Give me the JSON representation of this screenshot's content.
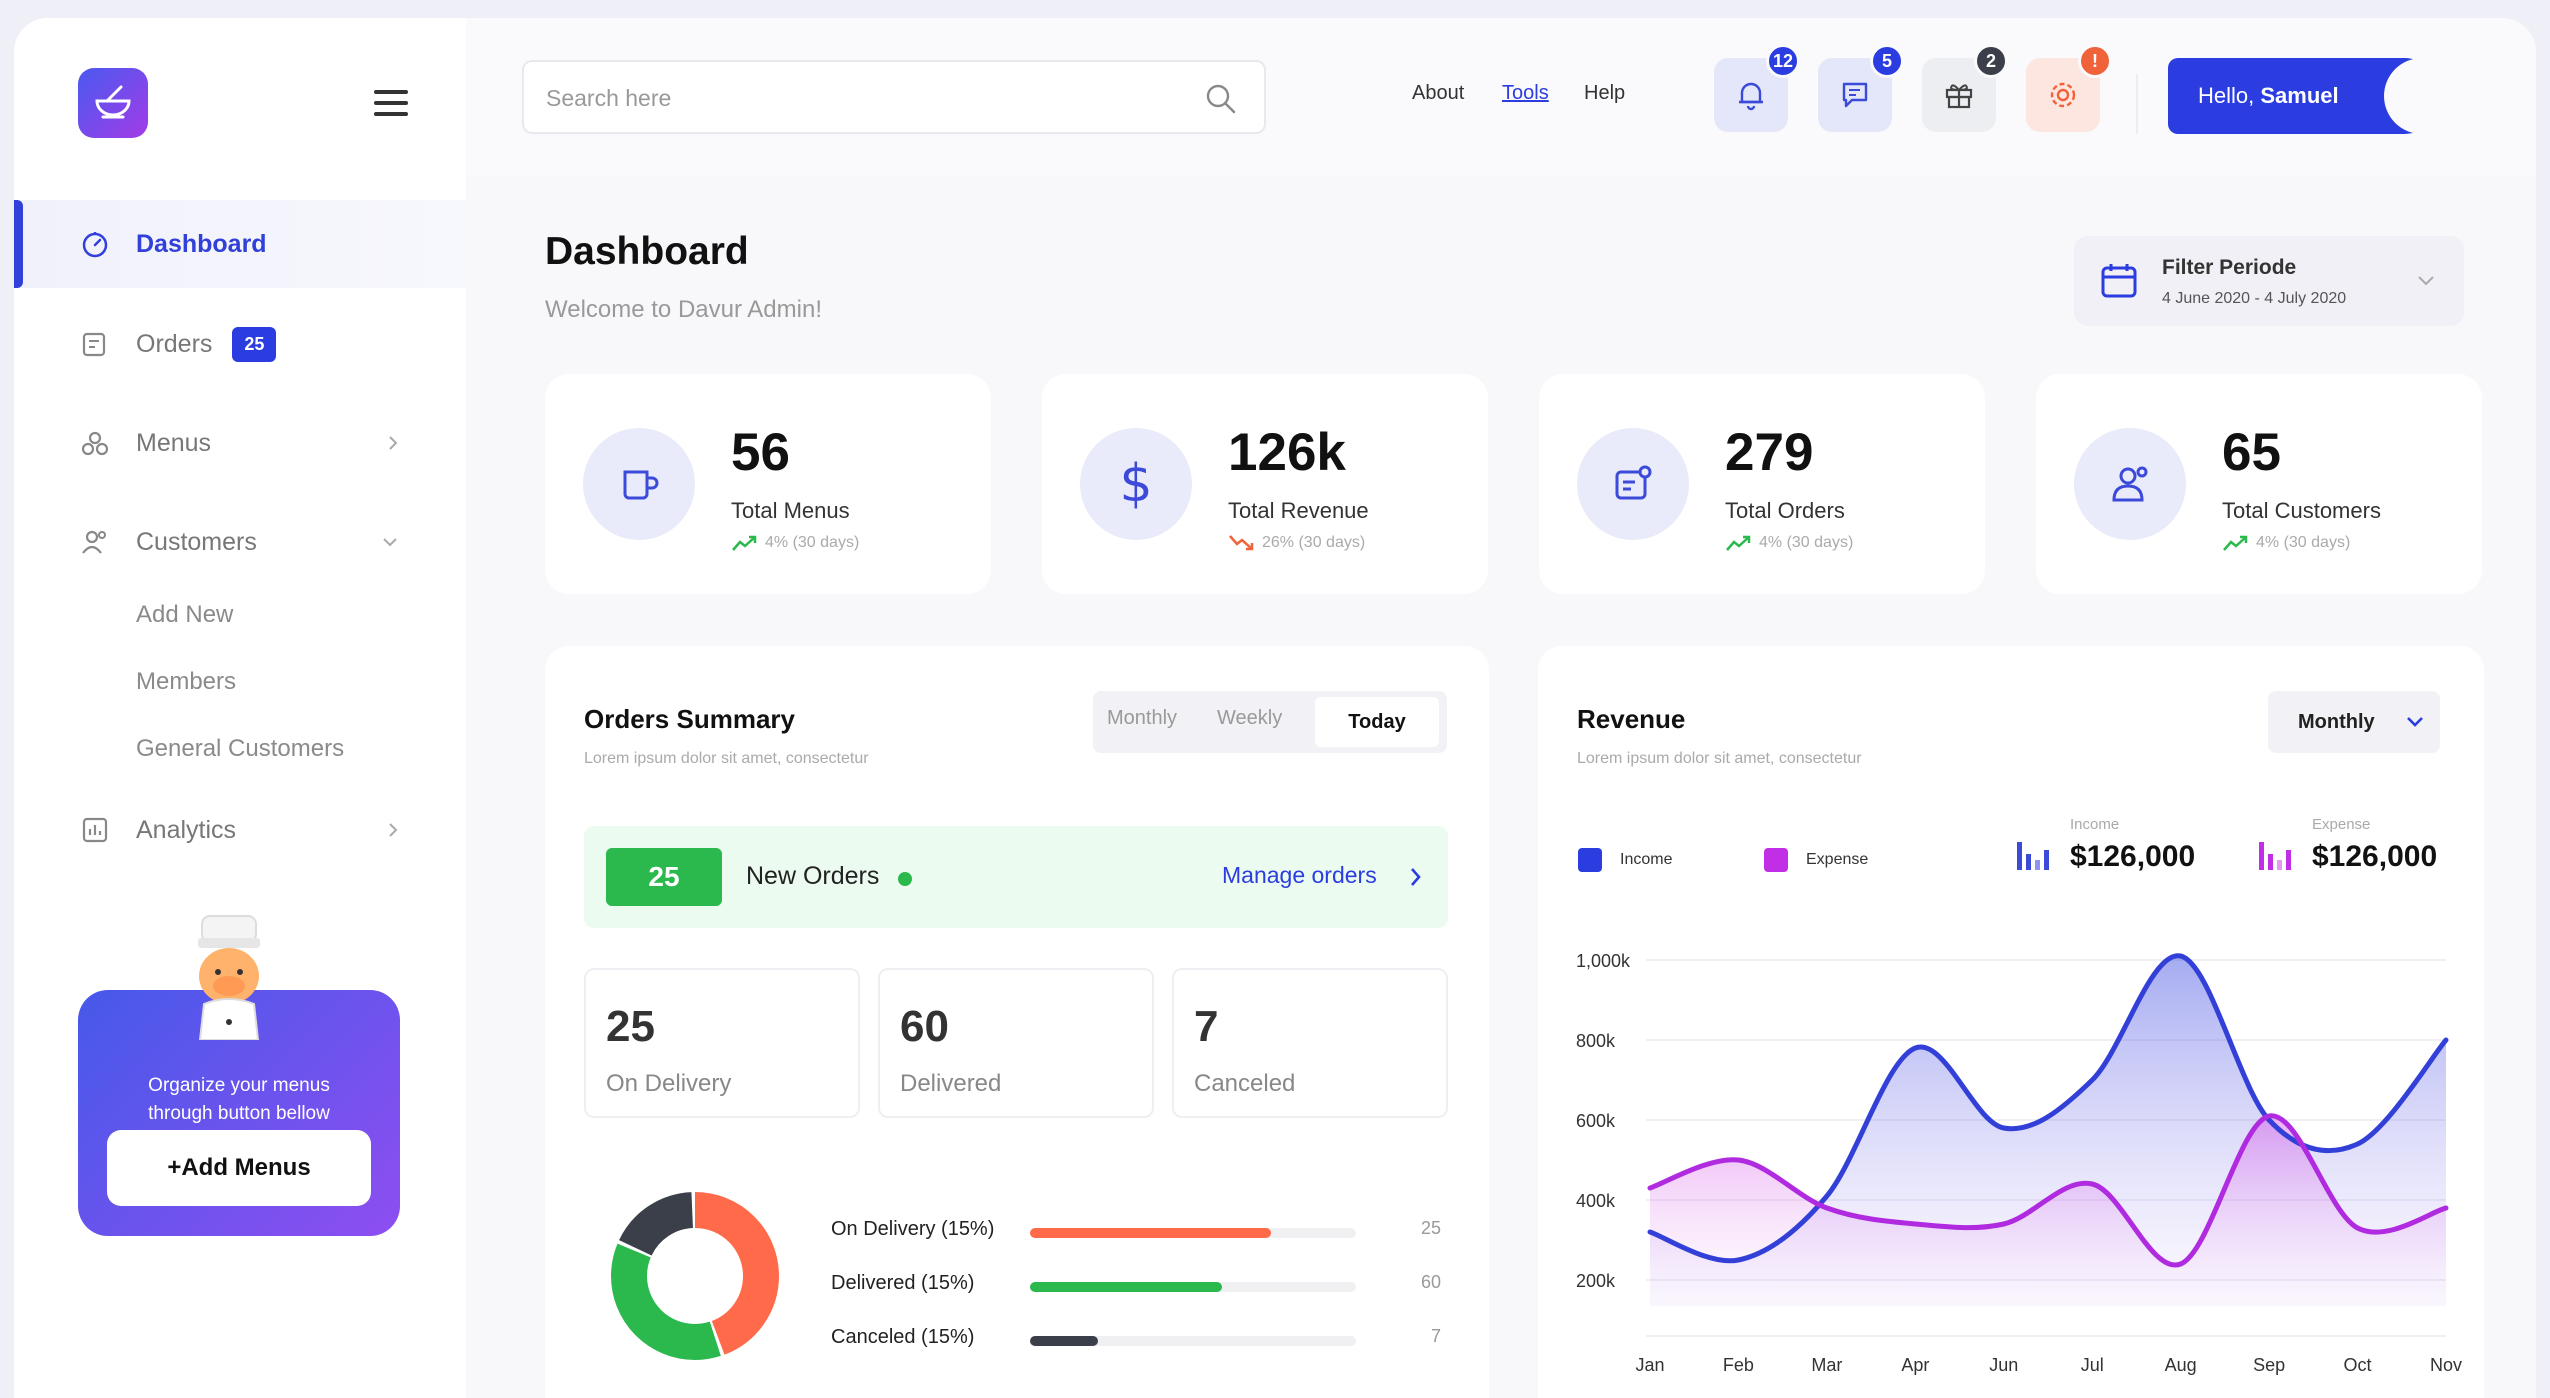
{
  "sidebar": {
    "nav": [
      {
        "label": "Dashboard"
      },
      {
        "label": "Orders",
        "badge": "25"
      },
      {
        "label": "Menus"
      },
      {
        "label": "Customers"
      },
      {
        "label": "Analytics"
      }
    ],
    "subitems": [
      "Add New",
      "Members",
      "General Customers"
    ],
    "promo": {
      "text_line1": "Organize your menus",
      "text_line2": "through button bellow",
      "button": "+Add Menus"
    }
  },
  "topbar": {
    "search_placeholder": "Search here",
    "links": [
      "About",
      "Tools",
      "Help"
    ],
    "badges": {
      "notifications": "12",
      "messages": "5",
      "gifts": "2",
      "settings": "!"
    },
    "greeting_prefix": "Hello,",
    "greeting_name": "Samuel"
  },
  "page": {
    "title": "Dashboard",
    "subtitle": "Welcome to Davur Admin!",
    "filter_title": "Filter Periode",
    "filter_range": "4 June 2020 - 4 July 2020"
  },
  "stats": [
    {
      "value": "56",
      "label": "Total Menus",
      "trend": "4% (30 days)",
      "direction": "up"
    },
    {
      "value": "126k",
      "label": "Total Revenue",
      "trend": "26% (30 days)",
      "direction": "down"
    },
    {
      "value": "279",
      "label": "Total Orders",
      "trend": "4% (30 days)",
      "direction": "up"
    },
    {
      "value": "65",
      "label": "Total Customers",
      "trend": "4% (30 days)",
      "direction": "up"
    }
  ],
  "orders_summary": {
    "title": "Orders Summary",
    "subtitle": "Lorem ipsum dolor sit amet, consectetur",
    "tabs": [
      "Monthly",
      "Weekly",
      "Today"
    ],
    "new_orders_count": "25",
    "new_orders_label": "New Orders",
    "manage_link": "Manage orders",
    "boxes": [
      {
        "value": "25",
        "label": "On Delivery"
      },
      {
        "value": "60",
        "label": "Delivered"
      },
      {
        "value": "7",
        "label": "Canceled"
      }
    ],
    "bars": [
      {
        "label": "On Delivery (15%)",
        "value": "25",
        "fill": 0.74,
        "color": "#ff6b4a"
      },
      {
        "label": "Delivered (15%)",
        "value": "60",
        "fill": 0.59,
        "color": "#2bb94d"
      },
      {
        "label": "Canceled (15%)",
        "value": "7",
        "fill": 0.21,
        "color": "#3a3f4a"
      }
    ],
    "donut": [
      {
        "name": "On Delivery",
        "share": 0.45,
        "color": "#ff6b4a"
      },
      {
        "name": "Delivered",
        "share": 0.37,
        "color": "#2bb94d"
      },
      {
        "name": "Canceled",
        "share": 0.18,
        "color": "#3a3f4a"
      }
    ]
  },
  "revenue": {
    "title": "Revenue",
    "subtitle": "Lorem ipsum dolor sit amet, consectetur",
    "period": "Monthly",
    "legend": [
      {
        "label": "Income",
        "color": "#2b3ce0"
      },
      {
        "label": "Expense",
        "color": "#c02ee6"
      }
    ],
    "income_caption": "Income",
    "income_total": "$126,000",
    "expense_caption": "Expense",
    "expense_total": "$126,000"
  },
  "chart_data": {
    "type": "area",
    "x": [
      "Jan",
      "Feb",
      "Mar",
      "Apr",
      "Jun",
      "Jul",
      "Aug",
      "Sep",
      "Oct",
      "Nov"
    ],
    "y_ticks": [
      "1,000k",
      "800k",
      "600k",
      "400k",
      "200k"
    ],
    "ylim": [
      100,
      1000
    ],
    "series": [
      {
        "name": "Income",
        "color": "#3340d8",
        "values": [
          320,
          250,
          410,
          780,
          580,
          700,
          1010,
          600,
          540,
          800
        ]
      },
      {
        "name": "Expense",
        "color": "#b02be0",
        "values": [
          430,
          500,
          380,
          340,
          340,
          440,
          240,
          610,
          330,
          380
        ]
      }
    ]
  }
}
